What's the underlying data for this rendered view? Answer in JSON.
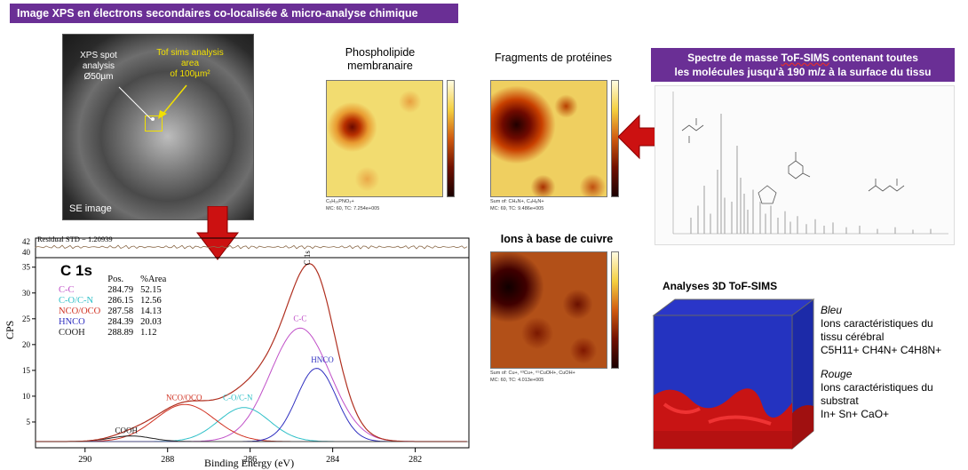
{
  "banner_title": "Image XPS en électrons secondaires co-localisée & micro-analyse chimique",
  "sem": {
    "label_spot": "XPS spot\nanalysis\nØ50µm",
    "label_tof": "Tof sims analysis\narea\nof 100µm²",
    "label_se": "SE image"
  },
  "maps": [
    {
      "title": "Phospholipide\nmembranaire",
      "caption1": "C₅H₁₀PNO₃+",
      "caption2": "MC: 60, TC: 7.254e+005"
    },
    {
      "title": "Fragments de protéines",
      "caption1": "Sum of: CH₄N+, C₄H₈N+",
      "caption2": "MC: 69, TC: 9.486e+005"
    },
    {
      "title": "Ions à base de cuivre",
      "caption1": "Sum of: Cu+, ⁶³Cu+, ⁶⁵CuOH+, CuOH+",
      "caption2": "MC: 60, TC: 4.013e+005"
    }
  ],
  "spectrum_banner": {
    "prefix": "Spectre de masse ",
    "underlined": "ToF-SIMS",
    "suffix": " contenant toutes\nles molécules jusqu'à 190 m/z à la surface du tissu"
  },
  "xps": {
    "residual": "Residual STD = 1.20939",
    "peak_label": "C 1s",
    "col_pos": "Pos.",
    "col_area": "%Area",
    "ylabel": "CPS",
    "xlabel": "Binding Energy (eV)",
    "components": [
      {
        "name": "C-C",
        "pos": "284.79",
        "area": "52.15",
        "color": "#c050c8"
      },
      {
        "name": "C-O/C-N",
        "pos": "286.15",
        "area": "12.56",
        "color": "#30c0c8"
      },
      {
        "name": "NCO/OCO",
        "pos": "287.58",
        "area": "14.13",
        "color": "#d03020"
      },
      {
        "name": "HNCO",
        "pos": "284.39",
        "area": "20.03",
        "color": "#3030c0"
      },
      {
        "name": "COOH",
        "pos": "288.89",
        "area": "1.12",
        "color": "#202020"
      }
    ],
    "annotations": {
      "c1s": "C 1s",
      "cc": "C-C",
      "hnco": "HNCO",
      "coc": "C-O/C-N",
      "nco": "NCO/OCO",
      "cooh": "COOH"
    },
    "x_ticks": [
      "290",
      "288",
      "286",
      "284",
      "282"
    ],
    "y_ticks": [
      "5",
      "10",
      "15",
      "20",
      "25",
      "30",
      "35"
    ],
    "resid_ticks": [
      "42",
      "40"
    ]
  },
  "cube": {
    "title": "Analyses 3D ToF-SIMS",
    "blue_title": "Bleu",
    "blue_text": "Ions caractéristiques du\ntissu cérébral\nC5H11+ CH4N+ C4H8N+",
    "red_title": "Rouge",
    "red_text": "Ions caractéristiques du\nsubstrat\nIn+ Sn+ CaO+"
  },
  "colors": {
    "banner": "#6a2f95",
    "arrow": "#cc1111"
  }
}
